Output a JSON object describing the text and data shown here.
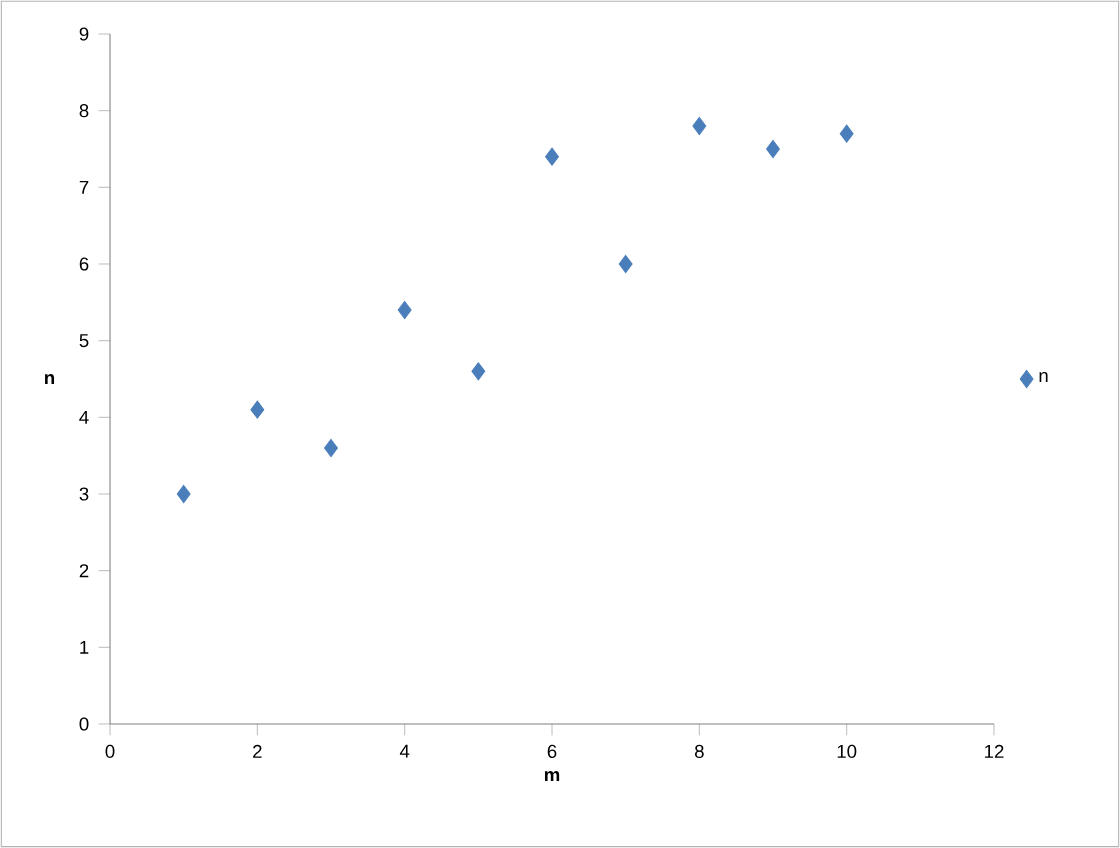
{
  "chart_data": {
    "type": "scatter",
    "xlabel": "m",
    "ylabel": "n",
    "series": [
      {
        "name": "n",
        "color": "#4a7ebb",
        "x": [
          1,
          2,
          3,
          4,
          5,
          6,
          7,
          8,
          9,
          10
        ],
        "values": [
          3,
          4.1,
          3.6,
          5.4,
          4.6,
          7.4,
          6,
          7.8,
          7.5,
          7.7
        ]
      }
    ],
    "xlim": [
      0,
      12
    ],
    "xticks": [
      0,
      2,
      4,
      6,
      8,
      10,
      12
    ],
    "ylim": [
      0,
      9
    ],
    "yticks": [
      0,
      1,
      2,
      3,
      4,
      5,
      6,
      7,
      8,
      9
    ],
    "marker": "diamond",
    "legend": "right",
    "grid": false
  }
}
